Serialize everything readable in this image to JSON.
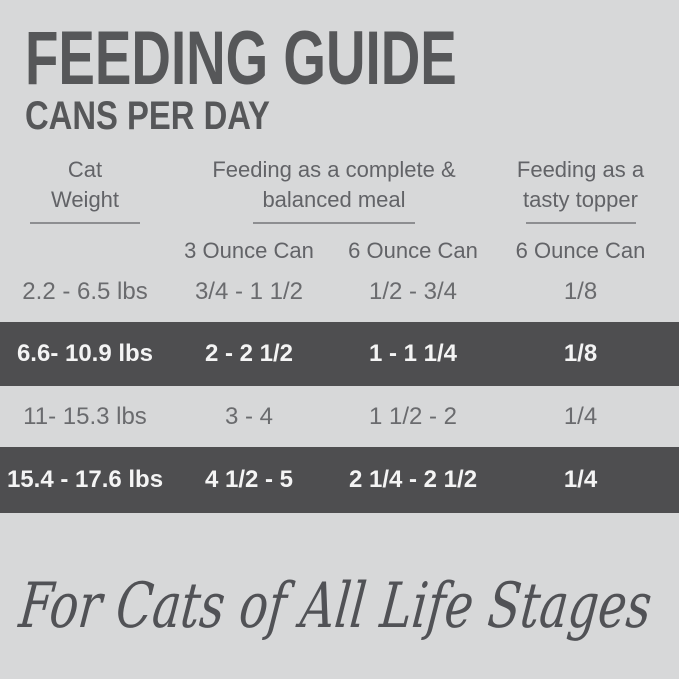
{
  "title": "FEEDING GUIDE",
  "subtitle": "CANS PER DAY",
  "header": {
    "weight_line1": "Cat",
    "weight_line2": "Weight",
    "meal_line1": "Feeding as a complete &",
    "meal_line2": "balanced meal",
    "topper_line1": "Feeding as a",
    "topper_line2": "tasty topper",
    "sub_meal_3oz": "3 Ounce Can",
    "sub_meal_6oz": "6 Ounce Can",
    "sub_topper_6oz": "6 Ounce Can"
  },
  "rows": [
    {
      "weight": "2.2 - 6.5 lbs",
      "can3": "3/4 - 1 1/2",
      "can6": "1/2 - 3/4",
      "topper": "1/8"
    },
    {
      "weight": "6.6- 10.9 lbs",
      "can3": "2 - 2 1/2",
      "can6": "1 - 1 1/4",
      "topper": "1/8"
    },
    {
      "weight": "11- 15.3 lbs",
      "can3": "3 - 4",
      "can6": "1 1/2 - 2",
      "topper": "1/4"
    },
    {
      "weight": "15.4 - 17.6 lbs",
      "can3": "4 1/2 - 5",
      "can6": "2 1/4 - 2 1/2",
      "topper": "1/4"
    }
  ],
  "footer": "For Cats of All Life Stages",
  "colors": {
    "background": "#d7d8d9",
    "dark_band": "#4e4e50",
    "title_text": "#565759",
    "body_text": "#6a6b6e",
    "dark_band_text": "#f4f4f4",
    "underline": "#8d8e91"
  },
  "chart_data": {
    "type": "table",
    "title": "FEEDING GUIDE",
    "subtitle": "CANS PER DAY",
    "columns": [
      "Cat Weight",
      "Feeding as a complete & balanced meal — 3 Ounce Can",
      "Feeding as a complete & balanced meal — 6 Ounce Can",
      "Feeding as a tasty topper — 6 Ounce Can"
    ],
    "rows": [
      [
        "2.2 - 6.5 lbs",
        "3/4 - 1 1/2",
        "1/2 - 3/4",
        "1/8"
      ],
      [
        "6.6- 10.9 lbs",
        "2 - 2 1/2",
        "1 - 1 1/4",
        "1/8"
      ],
      [
        "11- 15.3 lbs",
        "3 - 4",
        "1 1/2 - 2",
        "1/4"
      ],
      [
        "15.4 - 17.6 lbs",
        "4 1/2 - 5",
        "2 1/4 - 2 1/2",
        "1/4"
      ]
    ],
    "annotations": [
      "For Cats of All Life Stages"
    ],
    "layout": {
      "highlighted_rows": [
        1,
        3
      ],
      "grid": false
    }
  }
}
